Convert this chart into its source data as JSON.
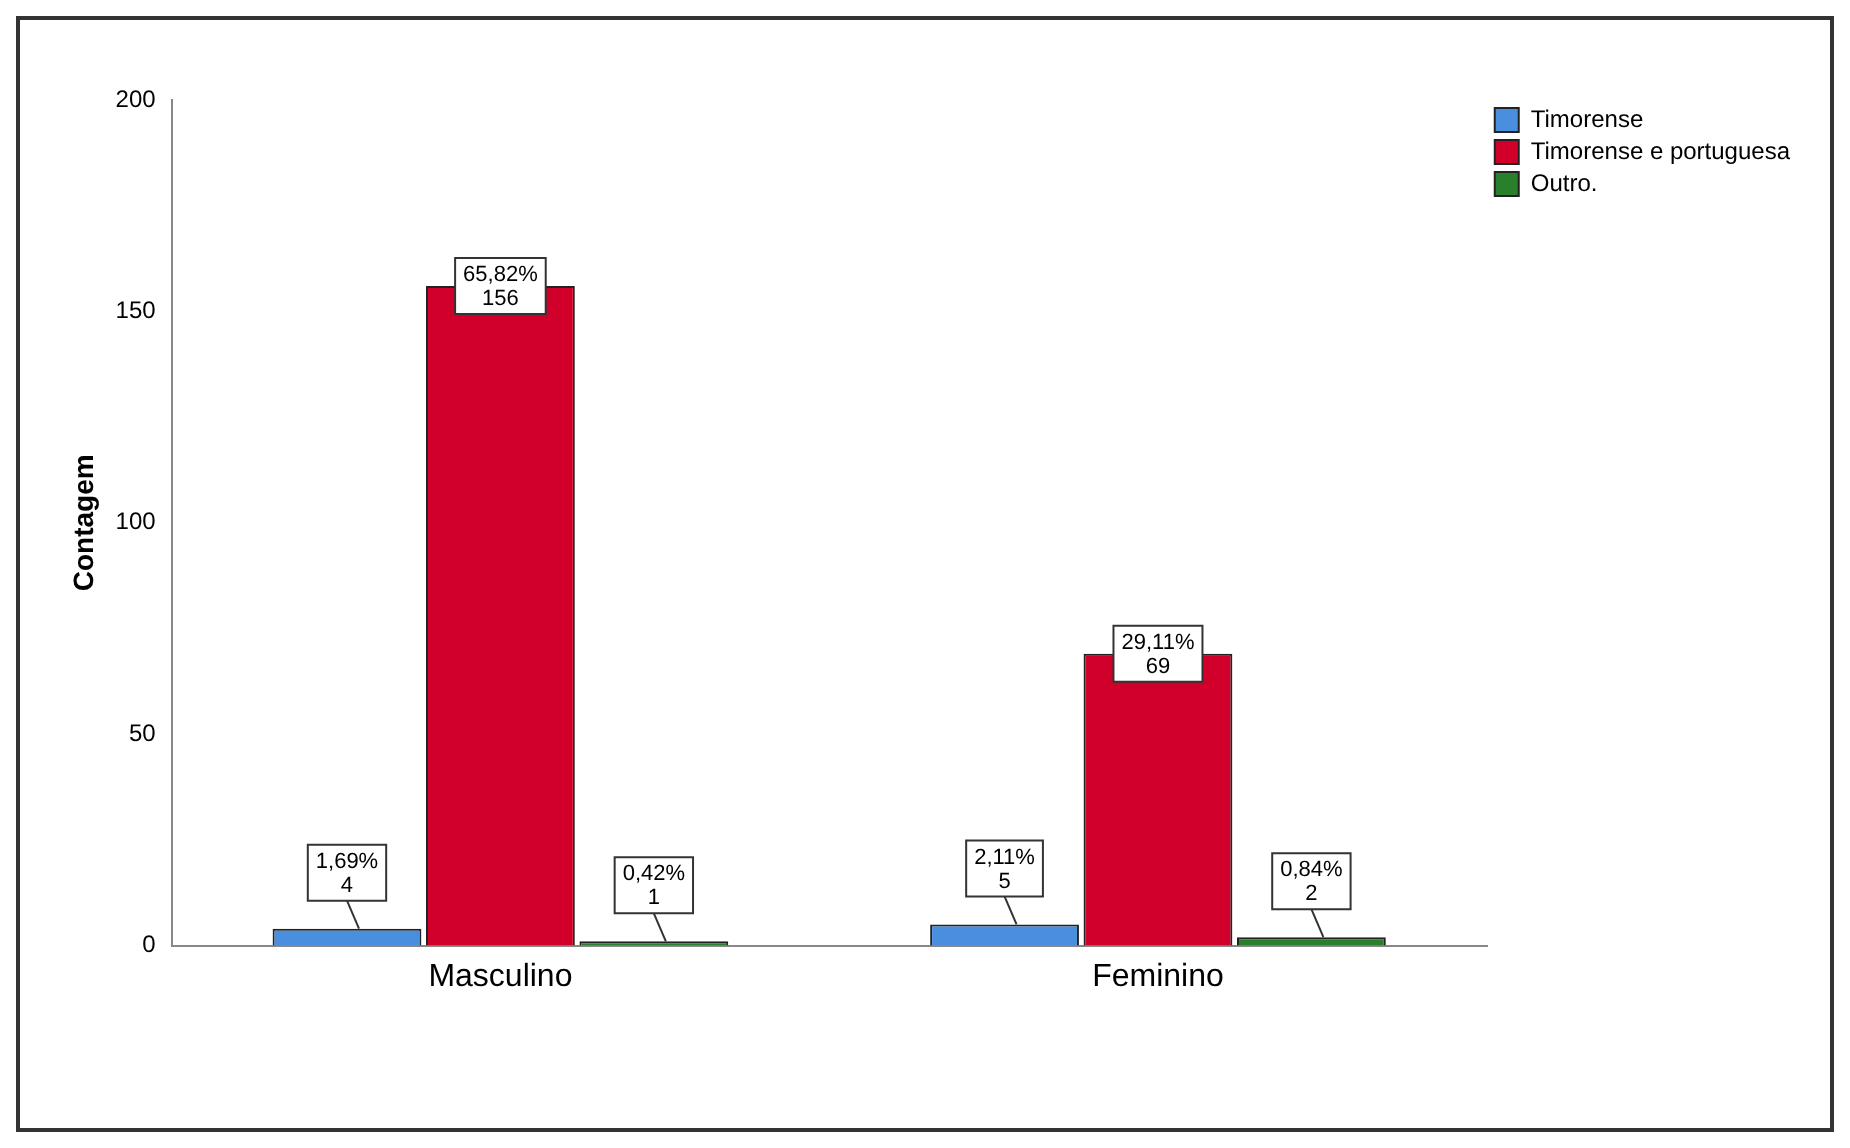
{
  "chart_data": {
    "type": "bar",
    "ylabel": "Contagem",
    "categories": [
      "Masculino",
      "Feminino"
    ],
    "series": [
      {
        "name": "Timorense",
        "color": "#4a8fdf",
        "values": [
          4,
          5
        ],
        "value_labels": [
          "1,69%\n4",
          "2,11%\n5"
        ]
      },
      {
        "name": "Timorense e portuguesa",
        "color": "#d1002a",
        "values": [
          156,
          69
        ],
        "value_labels": [
          "65,82%\n156",
          "29,11%\n69"
        ]
      },
      {
        "name": "Outro.",
        "color": "#2a7f2a",
        "values": [
          1,
          2
        ],
        "value_labels": [
          "0,42%\n1",
          "0,84%\n2"
        ]
      }
    ],
    "ylim": [
      0,
      200
    ],
    "yticks": [
      0,
      50,
      100,
      150,
      200
    ],
    "grid": false,
    "legend": "top right"
  }
}
